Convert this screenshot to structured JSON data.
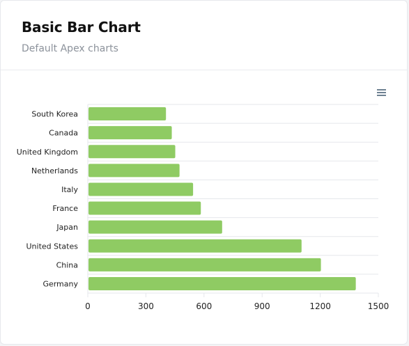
{
  "header": {
    "title": "Basic Bar Chart",
    "subtitle": "Default Apex charts"
  },
  "colors": {
    "bar": "#8fcb63",
    "grid": "#e5e7eb",
    "axis": "#6b6b6b",
    "label": "#222222"
  },
  "toolbar": {
    "menu_icon": "hamburger-menu-icon"
  },
  "chart_data": {
    "type": "bar",
    "orientation": "horizontal",
    "categories": [
      "South Korea",
      "Canada",
      "United Kingdom",
      "Netherlands",
      "Italy",
      "France",
      "Japan",
      "United States",
      "China",
      "Germany"
    ],
    "values": [
      400,
      430,
      448,
      470,
      540,
      580,
      690,
      1100,
      1200,
      1380
    ],
    "xlim": [
      0,
      1500
    ],
    "xticks": [
      "0",
      "300",
      "600",
      "900",
      "1200",
      "1500"
    ],
    "xtick_values": [
      0,
      300,
      600,
      900,
      1200,
      1500
    ],
    "grid": true,
    "legend": "none"
  }
}
